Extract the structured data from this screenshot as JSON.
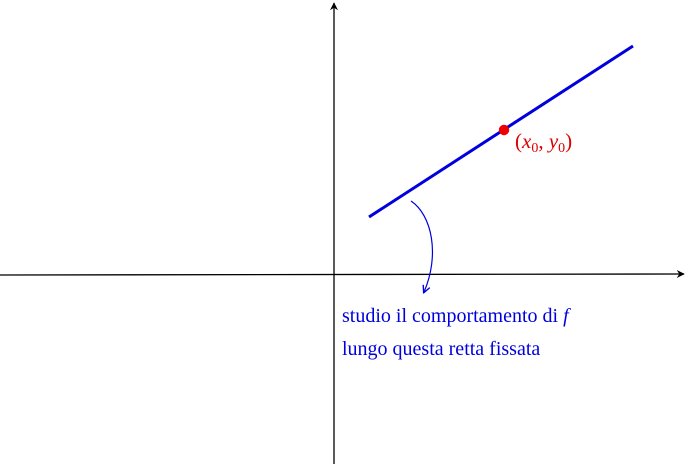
{
  "diagram": {
    "point": {
      "label_prefix": "(",
      "x_var": "x",
      "x_sub": "0",
      "comma": ", ",
      "y_var": "y",
      "y_sub": "0",
      "label_suffix": ")"
    },
    "note": {
      "line1_text": "studio il comportamento di ",
      "line1_func": "f",
      "line2_text": "lungo questa retta fissata"
    },
    "colors": {
      "axes": "#000000",
      "line": "#0000dd",
      "point": "#ee0000",
      "point_label": "#dd0000",
      "note": "#0000dd"
    }
  }
}
